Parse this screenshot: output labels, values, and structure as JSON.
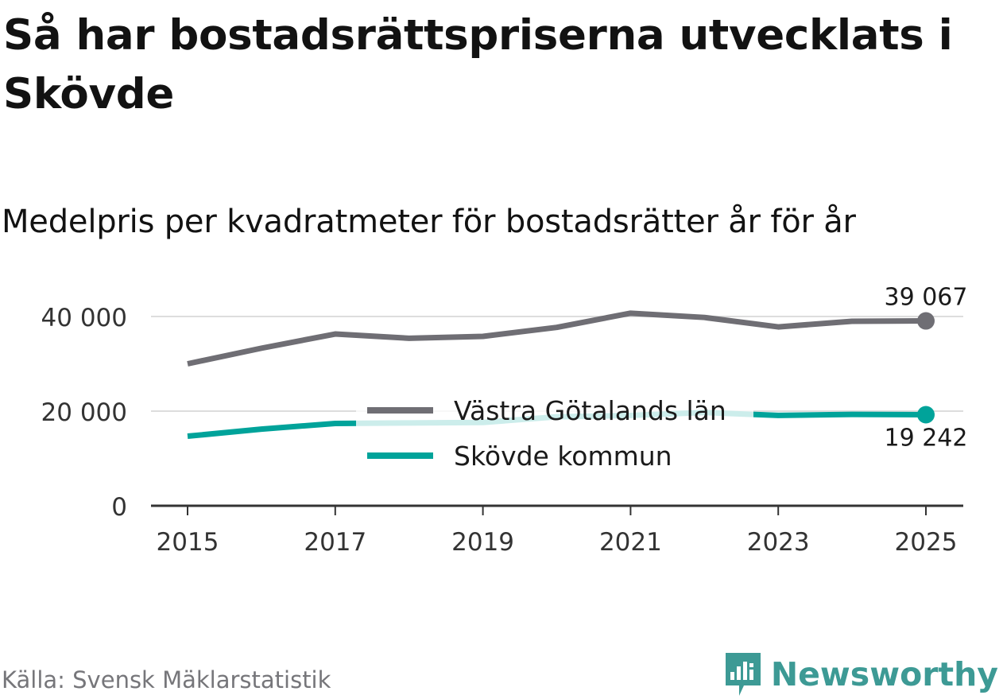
{
  "title": "Så har bostadsrättspriserna utvecklats i Skövde",
  "subtitle": "Medelpris per kvadratmeter för bostadsrätter år för år",
  "source": "Källa: Svensk Mäklarstatistik",
  "brand": "Newsworthy",
  "colors": {
    "vastra": "#6f6e74",
    "skovde": "#00a39a",
    "grid": "#dddddd",
    "axis": "#333333",
    "text": "#333333"
  },
  "chart_data": {
    "type": "line",
    "title": "Medelpris per kvadratmeter för bostadsrätter år för år",
    "xlabel": "",
    "ylabel": "",
    "x": [
      2015,
      2016,
      2017,
      2018,
      2019,
      2020,
      2021,
      2022,
      2023,
      2024,
      2025
    ],
    "xticks": [
      "2015",
      "2017",
      "2019",
      "2021",
      "2023",
      "2025"
    ],
    "yticks": [
      "0",
      "20 000",
      "40 000"
    ],
    "ylim": [
      0,
      40000
    ],
    "xlim": [
      2015,
      2025
    ],
    "grid": true,
    "legend_position": "center",
    "series": [
      {
        "name": "Västra Götalands län",
        "color": "#6f6e74",
        "values": [
          30000,
          33300,
          36300,
          35400,
          35800,
          37700,
          40700,
          39800,
          37800,
          39000,
          39067
        ]
      },
      {
        "name": "Skövde kommun",
        "color": "#00a39a",
        "values": [
          14700,
          16200,
          17400,
          17500,
          17600,
          18800,
          19100,
          19700,
          19100,
          19300,
          19242
        ]
      }
    ],
    "annotations": [
      {
        "series": 0,
        "x": 2025,
        "label": "39 067",
        "placement": "above"
      },
      {
        "series": 1,
        "x": 2025,
        "label": "19 242",
        "placement": "below"
      }
    ]
  }
}
